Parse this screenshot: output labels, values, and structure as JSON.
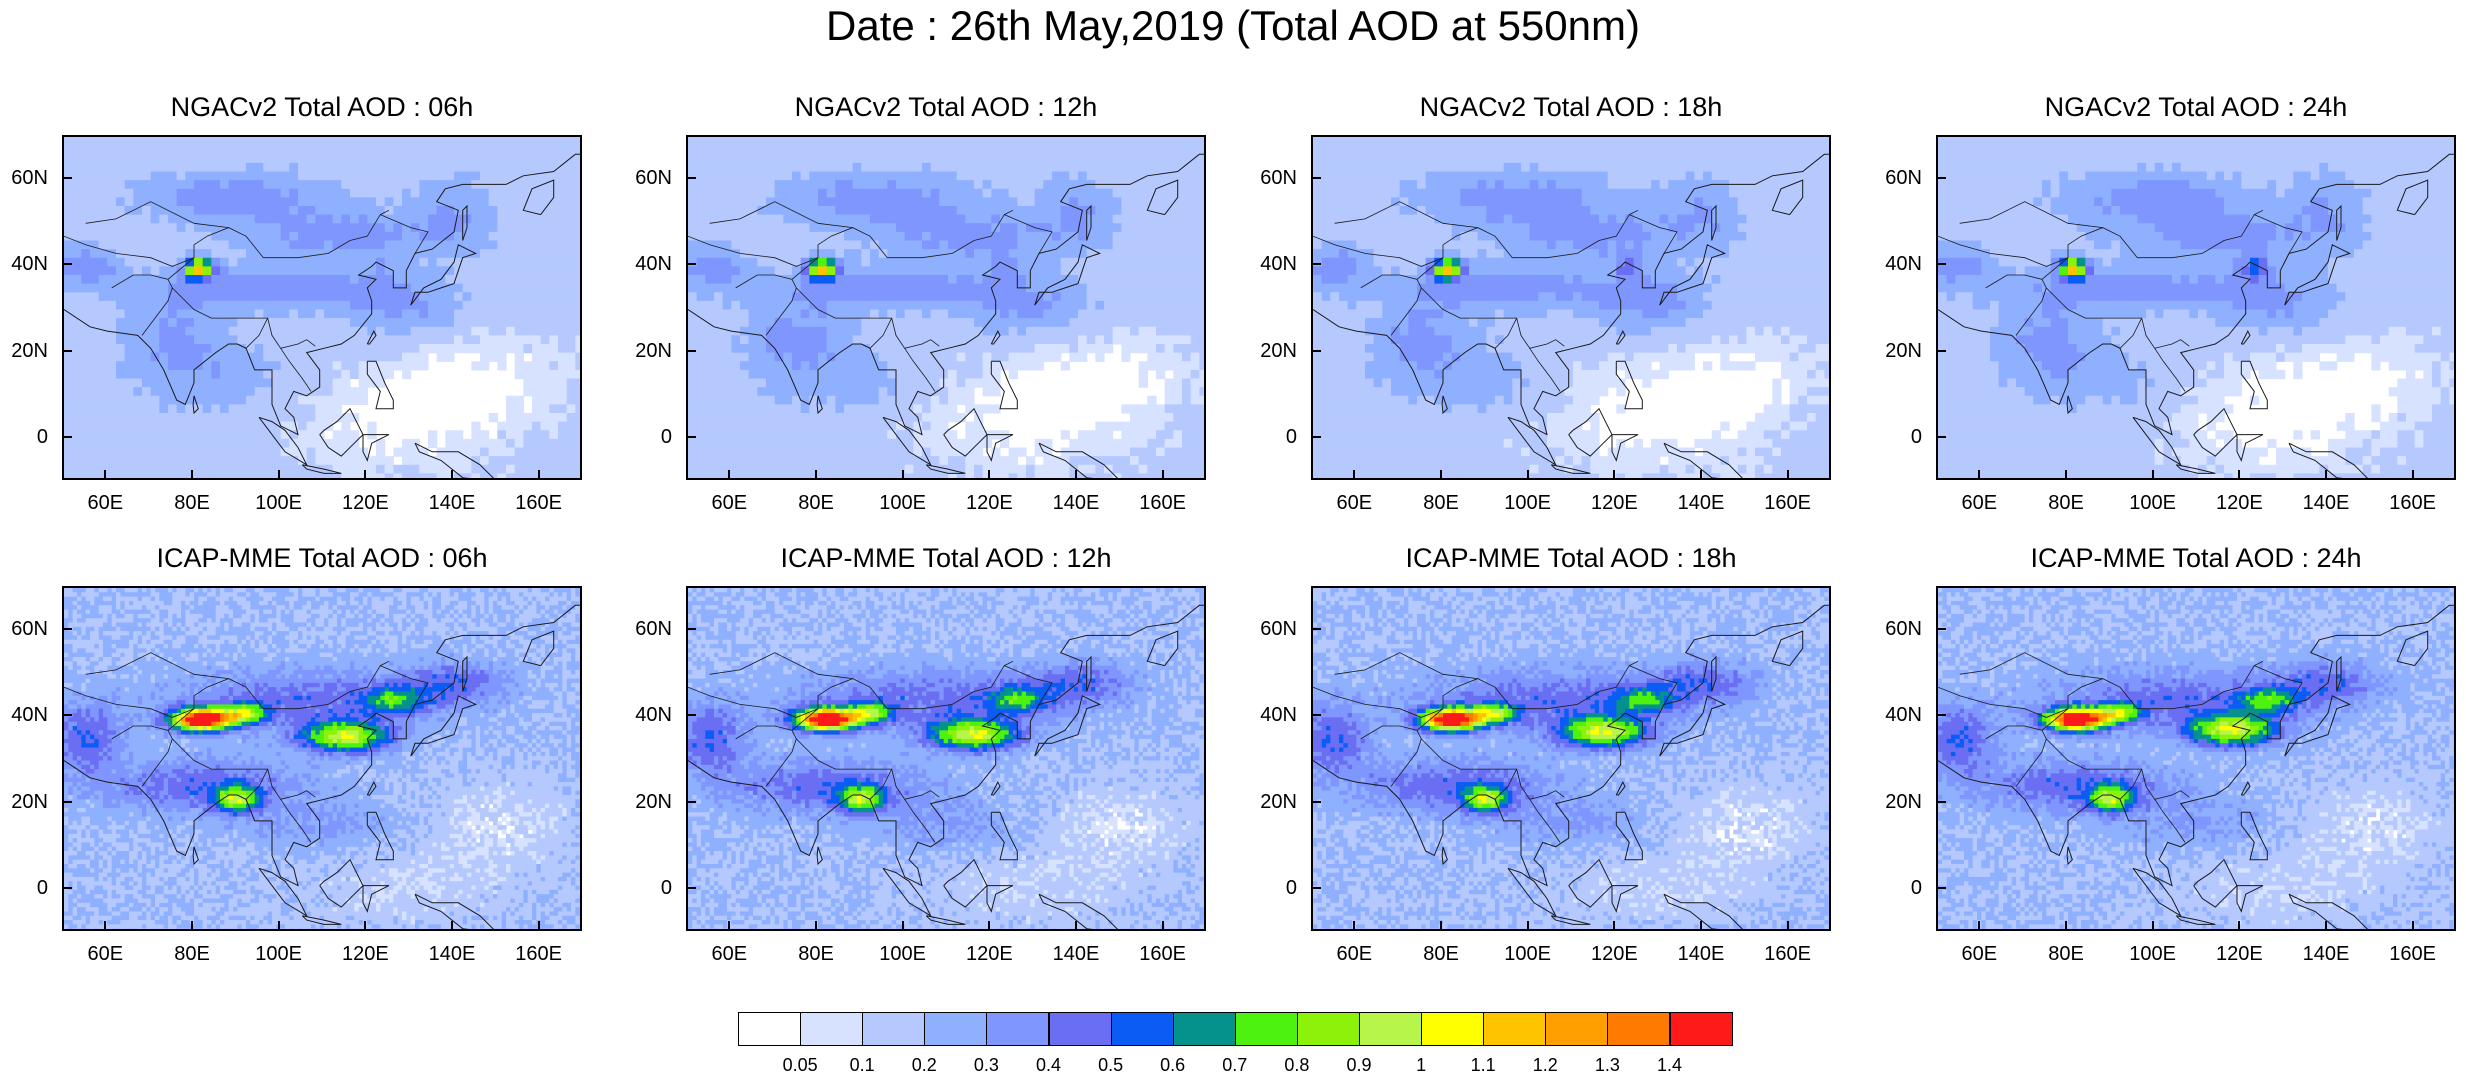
{
  "title": "Date : 26th May,2019 (Total AOD at 550nm)",
  "chart_data": [
    {
      "type": "heatmap",
      "title": "NGACv2 Total AOD : 06h",
      "model": "NGACv2",
      "hour": 6,
      "row": 0,
      "col": 0
    },
    {
      "type": "heatmap",
      "title": "NGACv2 Total AOD : 12h",
      "model": "NGACv2",
      "hour": 12,
      "row": 0,
      "col": 1
    },
    {
      "type": "heatmap",
      "title": "NGACv2 Total AOD : 18h",
      "model": "NGACv2",
      "hour": 18,
      "row": 0,
      "col": 2
    },
    {
      "type": "heatmap",
      "title": "NGACv2 Total AOD : 24h",
      "model": "NGACv2",
      "hour": 24,
      "row": 0,
      "col": 3
    },
    {
      "type": "heatmap",
      "title": "ICAP-MME Total AOD : 06h",
      "model": "ICAP-MME",
      "hour": 6,
      "row": 1,
      "col": 0
    },
    {
      "type": "heatmap",
      "title": "ICAP-MME Total AOD : 12h",
      "model": "ICAP-MME",
      "hour": 12,
      "row": 1,
      "col": 1
    },
    {
      "type": "heatmap",
      "title": "ICAP-MME Total AOD : 18h",
      "model": "ICAP-MME",
      "hour": 18,
      "row": 1,
      "col": 2
    },
    {
      "type": "heatmap",
      "title": "ICAP-MME Total AOD : 24h",
      "model": "ICAP-MME",
      "hour": 24,
      "row": 1,
      "col": 3
    }
  ],
  "axes": {
    "lon_range": [
      50,
      170
    ],
    "lat_range": [
      -10,
      70
    ],
    "x_ticks": [
      60,
      80,
      100,
      120,
      140,
      160
    ],
    "x_tick_labels": [
      "60E",
      "80E",
      "100E",
      "120E",
      "140E",
      "160E"
    ],
    "y_ticks": [
      60,
      40,
      20,
      0
    ],
    "y_tick_labels": [
      "60N",
      "40N",
      "20N",
      "0"
    ]
  },
  "colorbar": {
    "labels": [
      "0.05",
      "0.1",
      "0.2",
      "0.3",
      "0.4",
      "0.5",
      "0.6",
      "0.7",
      "0.8",
      "0.9",
      "1",
      "1.1",
      "1.2",
      "1.3",
      "1.4"
    ],
    "colors": [
      "#ffffff",
      "#d6e2ff",
      "#b5c9ff",
      "#8fb0ff",
      "#7f96ff",
      "#6a6ef2",
      "#0a5cf5",
      "#06928c",
      "#4df20f",
      "#8df20a",
      "#b8f54a",
      "#ffff00",
      "#ffc400",
      "#ffa000",
      "#ff7a00",
      "#ff1a1a"
    ]
  }
}
